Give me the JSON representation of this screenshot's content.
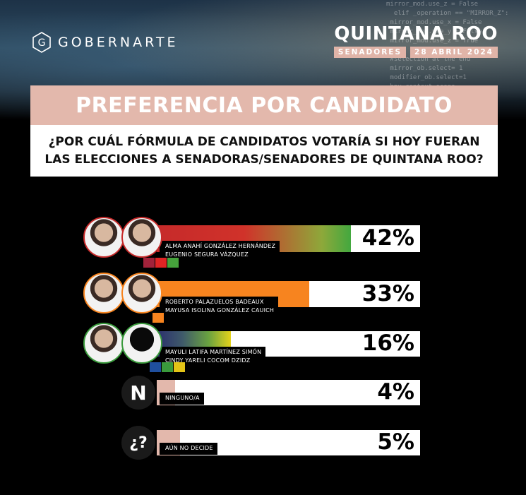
{
  "header": {
    "brand": "GOBERNARTE",
    "region": "QUINTANA ROO",
    "chamber": "SENADORES",
    "date": "28 ABRIL 2024",
    "title": "PREFERENCIA POR CANDIDATO",
    "question": "¿POR CUÁL FÓRMULA DE CANDIDATOS VOTARÍA SI HOY FUERAN LAS ELECCIONES A SENADORAS/SENADORES DE QUINTANA ROO?"
  },
  "options": [
    {
      "line1": "ALMA ANAHÍ GONZÁLEZ HERNÁNDEZ",
      "line2": "EUGENIO SEGURA VÁZQUEZ",
      "pct_label": "42%",
      "parties": [
        "MORENA",
        "PT",
        "VERDE"
      ]
    },
    {
      "line1": "ROBERTO PALAZUELOS BADEAUX",
      "line2": "MAYUSA ISOLINA GONZÁLEZ CAUICH",
      "pct_label": "33%",
      "parties": [
        "MC"
      ]
    },
    {
      "line1": "MAYULI LATIFA MARTÍNEZ SIMÓN",
      "line2": "CINDY YARELI COCOM DZIDZ",
      "pct_label": "16%",
      "parties": [
        "PAN",
        "PRI",
        "PRD"
      ]
    },
    {
      "line1": "NINGUNO/A",
      "line2": "",
      "pct_label": "4%",
      "badge": "N",
      "parties": []
    },
    {
      "line1": "AÚN NO DECIDE",
      "line2": "",
      "pct_label": "5%",
      "badge": "¿?",
      "parties": []
    }
  ],
  "chart_data": {
    "type": "bar",
    "title": "PREFERENCIA POR CANDIDATO",
    "categories": [
      "ALMA ANAHÍ GONZÁLEZ HERNÁNDEZ / EUGENIO SEGURA VÁZQUEZ",
      "ROBERTO PALAZUELOS BADEAUX / MAYUSA ISOLINA GONZÁLEZ CAUICH",
      "MAYULI LATIFA MARTÍNEZ SIMÓN / CINDY YARELI COCOM DZIDZ",
      "NINGUNO/A",
      "AÚN NO DECIDE"
    ],
    "values": [
      42,
      33,
      16,
      4,
      5
    ],
    "ylim": [
      0,
      100
    ],
    "orientation": "horizontal",
    "grid": false,
    "colors": [
      "#c62a2a",
      "#f7841f",
      "#e4d21b",
      "#e3b8ac",
      "#e3b8ac"
    ]
  }
}
